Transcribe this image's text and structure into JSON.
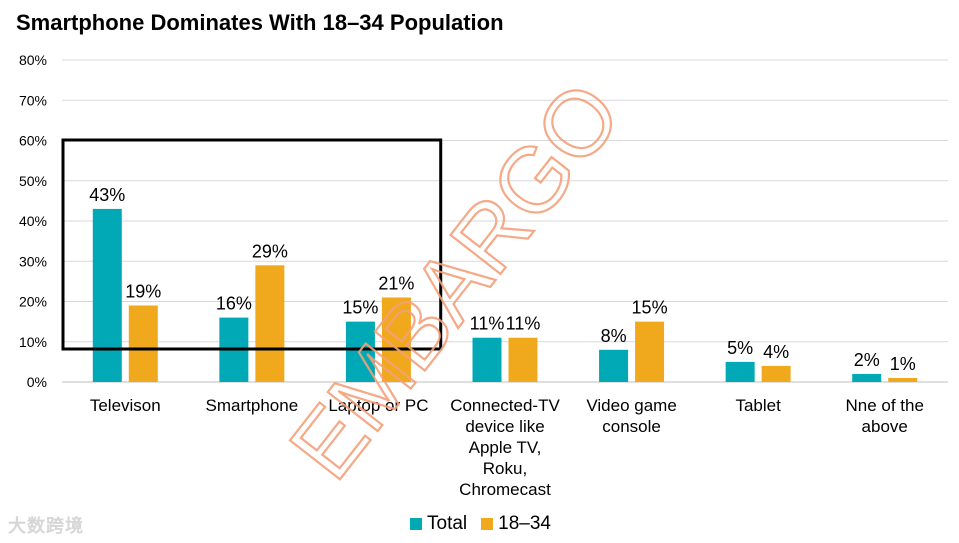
{
  "colors": {
    "total": "#00A9B5",
    "age": "#F0A81C",
    "grid": "#D9D9D9",
    "highlight": "#000000",
    "stamp": "#F4A07A"
  },
  "stamp_text": "EMBARGO",
  "footer_watermark": "大数跨境",
  "chart_data": {
    "type": "bar",
    "title": "Smartphone Dominates With 18–34 Population",
    "ylim": [
      0,
      80
    ],
    "yticks": [
      "0%",
      "10%",
      "20%",
      "30%",
      "40%",
      "50%",
      "60%",
      "70%",
      "80%"
    ],
    "ytick_values": [
      0,
      10,
      20,
      30,
      40,
      50,
      60,
      70,
      80
    ],
    "categories": [
      [
        "Televison"
      ],
      [
        "Smartphone"
      ],
      [
        "Laptop or PC"
      ],
      [
        "Connected-TV",
        "device like",
        "Apple TV,",
        "Roku,",
        "Chromecast"
      ],
      [
        "Video game",
        "console"
      ],
      [
        "Tablet"
      ],
      [
        "Nne of the",
        "above"
      ]
    ],
    "series": [
      {
        "name": "Total",
        "values": [
          43,
          16,
          15,
          11,
          8,
          5,
          2
        ],
        "labels": [
          "43%",
          "16%",
          "15%",
          "11%",
          "8%",
          "5%",
          "2%"
        ]
      },
      {
        "name": "18–34",
        "values": [
          19,
          29,
          21,
          11,
          15,
          4,
          1
        ],
        "labels": [
          "19%",
          "29%",
          "21%",
          "11%",
          "15%",
          "4%",
          "1%"
        ]
      }
    ],
    "legend_position": "bottom",
    "grid": true,
    "annotation": "highlight box around first three categories"
  }
}
